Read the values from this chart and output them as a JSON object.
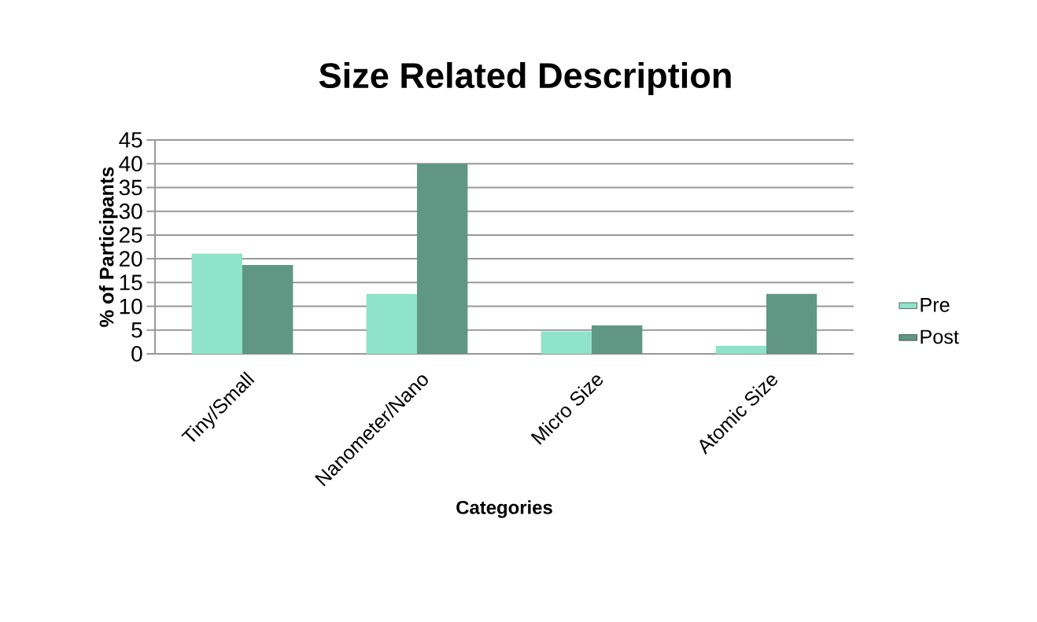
{
  "chart_data": {
    "type": "bar",
    "title": "Size Related Description",
    "xlabel": "Categories",
    "ylabel": "% of Participants",
    "categories": [
      "Tiny/Small",
      "Nanometer/Nano",
      "Micro Size",
      "Atomic Size"
    ],
    "series": [
      {
        "name": "Pre",
        "color": "#8ee3c8",
        "values": [
          21.1,
          12.6,
          4.7,
          1.7
        ]
      },
      {
        "name": "Post",
        "color": "#5f9784",
        "values": [
          18.7,
          40,
          6.0,
          12.6
        ]
      }
    ],
    "ylim": [
      0,
      45
    ],
    "yticks": [
      0,
      5,
      10,
      15,
      20,
      25,
      30,
      35,
      40,
      45
    ],
    "grid": "y",
    "legend": "right"
  }
}
